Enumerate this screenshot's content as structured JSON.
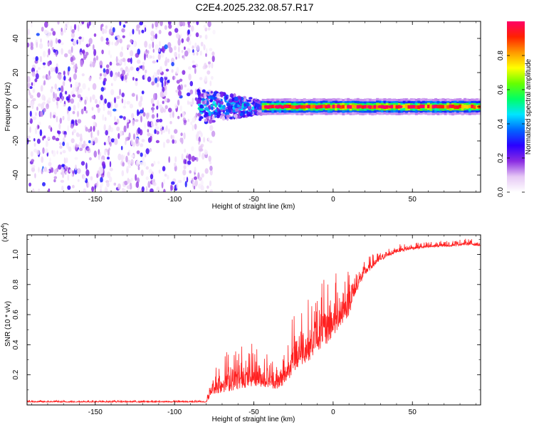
{
  "title": "C2E4.2025.232.08.57.R17",
  "chart_data": [
    {
      "type": "heatmap",
      "title": "C2E4.2025.232.08.57.R17",
      "xlabel": "Height of straight line (km)",
      "ylabel": "Frequency (Hz)",
      "xlim": [
        -193,
        93
      ],
      "ylim": [
        -50,
        50
      ],
      "xticks": [
        -150,
        -100,
        -50,
        0,
        50
      ],
      "xtick_labels": [
        "-150",
        "-100",
        "-50",
        "0",
        "50"
      ],
      "yticks": [
        -40,
        -20,
        0,
        20,
        40
      ],
      "ytick_labels": [
        "-40",
        "-20",
        "0",
        "20",
        "40"
      ],
      "colorbar": {
        "label": "Normalized spectral amplitude",
        "range": [
          0,
          1
        ],
        "ticks": [
          0.0,
          0.2,
          0.4,
          0.6,
          0.8
        ],
        "tick_labels": [
          "0.0",
          "0.2",
          "0.4",
          "0.6",
          "0.8"
        ],
        "colors": [
          "#ffffff",
          "#e6c8f5",
          "#8a2be2",
          "#2b00ff",
          "#0066ff",
          "#00e5ff",
          "#00ff66",
          "#66ff00",
          "#ffff00",
          "#ff9900",
          "#ff2200",
          "#ff0066"
        ]
      },
      "regions": [
        {
          "name": "noise",
          "x_range": [
            -193,
            -85
          ],
          "f_range": [
            -50,
            50
          ],
          "amplitude": 0.15
        },
        {
          "name": "onset",
          "x_range": [
            -85,
            -45
          ],
          "f_center": 0,
          "f_halfwidth": 10,
          "amplitude": 0.45
        },
        {
          "name": "stable-tone",
          "x_range": [
            -45,
            93
          ],
          "f_center": 0,
          "f_halfwidth": 3,
          "amplitude": 0.9
        }
      ]
    },
    {
      "type": "line",
      "xlabel": "Height of straight line (km)",
      "ylabel": "SNR (10 * v/v)",
      "scale_label": "(x10",
      "scale_exponent": "4",
      "xlim": [
        -193,
        93
      ],
      "ylim": [
        0,
        1.13
      ],
      "xticks": [
        -150,
        -100,
        -50,
        0,
        50
      ],
      "xtick_labels": [
        "-150",
        "-100",
        "-50",
        "0",
        "50"
      ],
      "yticks": [
        0.2,
        0.4,
        0.6,
        0.8,
        1.0
      ],
      "ytick_labels": [
        "0.2",
        "0.4",
        "0.6",
        "0.8",
        "1.0"
      ],
      "line_color": "#ff2020",
      "series": [
        {
          "name": "SNR",
          "envelope": {
            "x": [
              -193,
              -80,
              -76,
              -72,
              -60,
              -50,
              -40,
              -35,
              -30,
              -25,
              -20,
              -15,
              -10,
              -5,
              0,
              5,
              10,
              15,
              20,
              30,
              40,
              50,
              60,
              75,
              85,
              93
            ],
            "base": [
              0.02,
              0.02,
              0.1,
              0.12,
              0.15,
              0.17,
              0.15,
              0.13,
              0.18,
              0.28,
              0.33,
              0.36,
              0.42,
              0.46,
              0.52,
              0.58,
              0.65,
              0.78,
              0.88,
              0.97,
              1.02,
              1.04,
              1.05,
              1.06,
              1.07,
              1.06
            ],
            "amp": [
              0.01,
              0.01,
              0.12,
              0.2,
              0.22,
              0.2,
              0.18,
              0.12,
              0.22,
              0.28,
              0.3,
              0.3,
              0.32,
              0.32,
              0.3,
              0.28,
              0.25,
              0.12,
              0.08,
              0.05,
              0.04,
              0.03,
              0.03,
              0.03,
              0.03,
              0.03
            ]
          }
        }
      ]
    }
  ]
}
